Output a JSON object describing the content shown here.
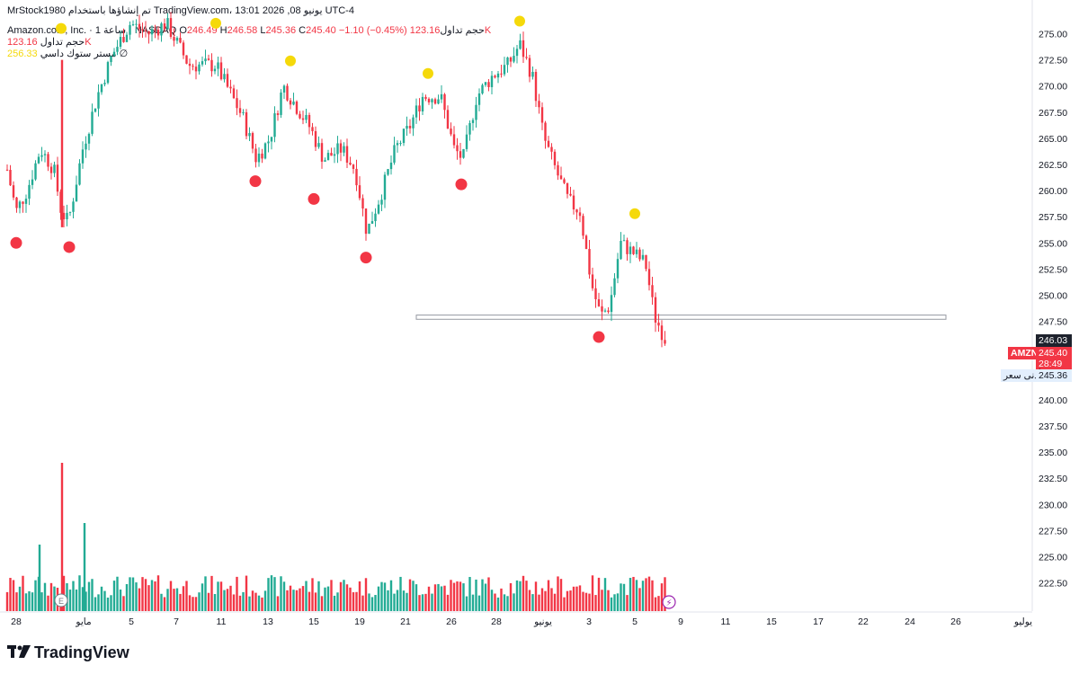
{
  "header": {
    "top_line": "MrStock1980 تم إنشاؤها باستخدام TradingView.com، 13:01 2026 ,08 يونيو UTC-4",
    "symbol_name": "Amazon.com, Inc.",
    "interval": "1 ساعة",
    "exchange": "NASDAQ",
    "open_label": "O",
    "open": "246.49",
    "high_label": "H",
    "high": "246.58",
    "low_label": "L",
    "low": "245.36",
    "close_label": "C",
    "close": "245.40",
    "change": "−1.10 (−0.45%)",
    "volume_label": "حجم تداول",
    "volume": "123.16K",
    "indicator1_label": "حجم تداول",
    "indicator1_value": "123.16K",
    "indicator2_label": "مستر ستوك داسي",
    "indicator2_value": "256.33",
    "indicator2_extra": "∅"
  },
  "price_tags": {
    "prev": "246.03",
    "symbol": "AMZN",
    "last": "245.40",
    "countdown": "28:49",
    "low_label": "أدنى سعر",
    "low": "245.36"
  },
  "logo": {
    "text": "TradingView",
    "icon": "tradingview-logo-icon"
  },
  "colors": {
    "up": "#22ab94",
    "down": "#f23645",
    "marker_top": "#f5d90a",
    "marker_bottom": "#f23645"
  },
  "chart_data": {
    "type": "candlestick",
    "y_axis": {
      "ticks": [
        "275.00",
        "272.50",
        "270.00",
        "267.50",
        "265.00",
        "262.50",
        "260.00",
        "257.50",
        "255.00",
        "252.50",
        "250.00",
        "247.50",
        "245.00",
        "242.50",
        "240.00",
        "237.50",
        "235.00",
        "232.50",
        "230.00",
        "227.50",
        "225.00",
        "222.50"
      ],
      "range": [
        221.5,
        277.0
      ]
    },
    "x_axis": {
      "ticks": [
        "28",
        "مايو",
        "5",
        "7",
        "11",
        "13",
        "15",
        "19",
        "21",
        "26",
        "28",
        "يونيو",
        "3",
        "5",
        "9",
        "11",
        "15",
        "17",
        "22",
        "24",
        "26",
        "يوليو"
      ]
    },
    "support_zone": [
      247.7,
      248.1
    ],
    "swing_lows": [
      {
        "x_tick": "28",
        "price": 255.0
      },
      {
        "x_tick": "مايو",
        "price": 254.6
      },
      {
        "x_tick": "13",
        "price": 260.9
      },
      {
        "x_tick": "15",
        "price": 259.2
      },
      {
        "x_tick": "19",
        "price": 253.6
      },
      {
        "x_tick": "26",
        "price": 260.6
      },
      {
        "x_tick": "3",
        "price": 246.0
      }
    ],
    "swing_highs": [
      {
        "x_tick": "مايو",
        "price": 275.5
      },
      {
        "x_tick": "11",
        "price": 276.0
      },
      {
        "x_tick": "15",
        "price": 272.4
      },
      {
        "x_tick": "26",
        "price": 271.2
      },
      {
        "x_tick": "28",
        "price": 276.2
      },
      {
        "x_tick": "5",
        "price": 257.8
      }
    ],
    "volume_axis_note": "volume bars share the bottom panel; max ≈ 123.16K scale"
  }
}
